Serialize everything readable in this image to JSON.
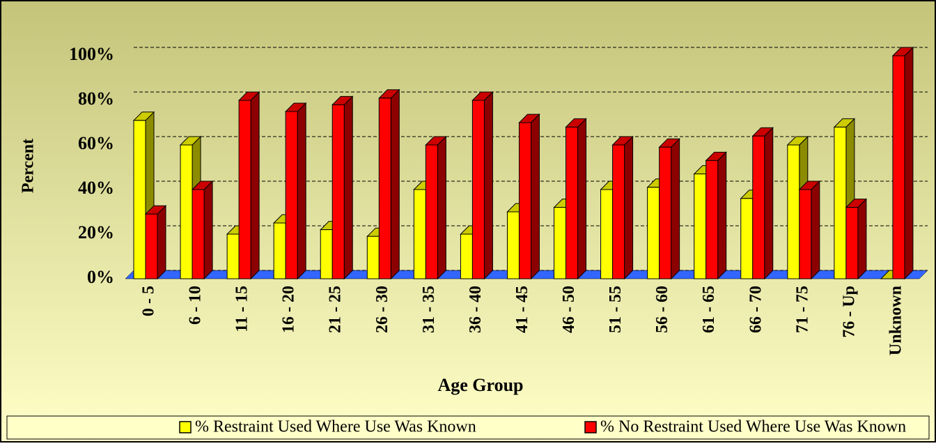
{
  "chart_data": {
    "type": "bar3d",
    "x_label": "Age Group",
    "y_label": "Percent",
    "categories": [
      "0 - 5",
      "6 - 10",
      "11 - 15",
      "16 - 20",
      "21 - 25",
      "26 - 30",
      "31 - 35",
      "36 - 40",
      "41 - 45",
      "46 - 50",
      "51 - 55",
      "56 - 60",
      "61 - 65",
      "66 - 70",
      "71 - 75",
      "76 - Up",
      "Unknown"
    ],
    "series": [
      {
        "name": "% Restraint Used Where Use Was Known",
        "color": "#ffff00",
        "values": [
          71,
          60,
          20,
          25,
          22,
          19,
          40,
          20,
          30,
          32,
          40,
          41,
          47,
          36,
          60,
          68,
          0
        ]
      },
      {
        "name": "% No Restraint Used Where Use Was Known",
        "color": "#ff0000",
        "values": [
          29,
          40,
          80,
          75,
          78,
          81,
          60,
          80,
          70,
          68,
          60,
          59,
          53,
          64,
          40,
          32,
          100
        ]
      }
    ],
    "ylim": [
      0,
      100
    ],
    "yticks": [
      {
        "value": 0,
        "label": "0%"
      },
      {
        "value": 20,
        "label": "20%"
      },
      {
        "value": 40,
        "label": "40%"
      },
      {
        "value": 60,
        "label": "60%"
      },
      {
        "value": 80,
        "label": "80%"
      },
      {
        "value": 100,
        "label": "100%"
      }
    ],
    "grid": true,
    "legend": "bottom"
  }
}
